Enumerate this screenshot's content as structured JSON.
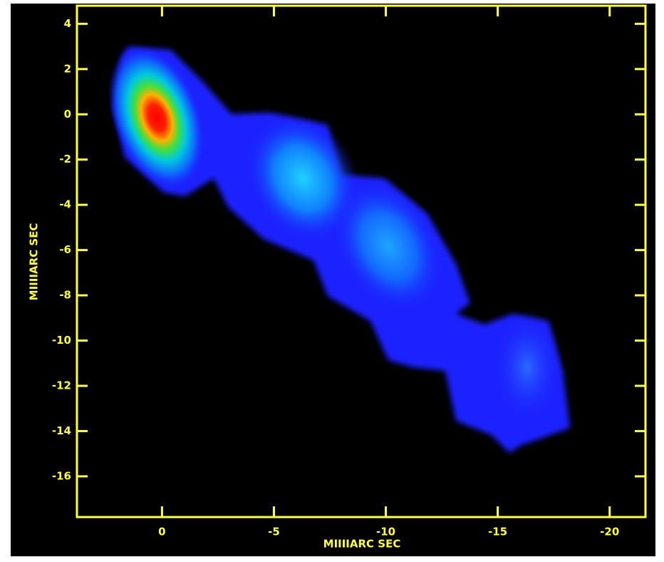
{
  "chart_data": {
    "type": "image",
    "xlabel": "MIIIIARC SEC",
    "ylabel": "MIIIIARC SEC",
    "xlim": [
      3.8,
      -21.6
    ],
    "ylim": [
      -17.8,
      4.8
    ],
    "xticks": [
      0,
      -5,
      -10,
      -15,
      -20
    ],
    "yticks": [
      4,
      2,
      0,
      -2,
      -4,
      -6,
      -8,
      -10,
      -12,
      -14,
      -16
    ],
    "color": "#ffff44"
  }
}
